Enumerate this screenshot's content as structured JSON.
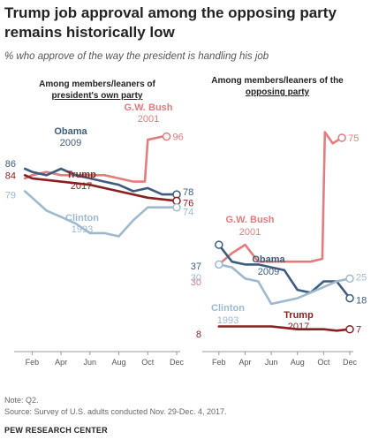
{
  "title": "Trump job approval among the opposing party remains historically low",
  "subtitle": "% who approve of the way the president is handling his job",
  "note": "Note: Q2.",
  "source": "Source: Survey of U.S. adults conducted Nov. 29-Dec. 4, 2017.",
  "brand": "PEW RESEARCH CENTER",
  "colors": {
    "bush": "#e47b7d",
    "obama": "#3e5c7d",
    "trump": "#8a1f1f",
    "clinton": "#9db9cf",
    "axis": "#9a9a9a",
    "tick_text": "#555555"
  },
  "chart_data": [
    {
      "type": "line",
      "title": "Among members/leaners of president's own party",
      "title_lines": [
        "Among members/leaners of",
        "president's own party"
      ],
      "x_ticks": [
        "Feb",
        "Apr",
        "Jun",
        "Aug",
        "Oct",
        "Dec"
      ],
      "x_domain": [
        1,
        12
      ],
      "ylim": [
        30,
        100
      ],
      "series": [
        {
          "name": "G.W. Bush",
          "year": "2001",
          "color_key": "bush",
          "start_label": "",
          "end_label": "96",
          "x": [
            1.5,
            2,
            3,
            4,
            5,
            6,
            7,
            8,
            9,
            9.8,
            10,
            11,
            11.3
          ],
          "values": [
            83,
            84,
            85,
            84,
            84,
            84,
            84,
            83,
            82,
            82,
            95,
            96,
            96
          ]
        },
        {
          "name": "Obama",
          "year": "2009",
          "color_key": "obama",
          "start_label": "86",
          "end_label": "78",
          "x": [
            1.5,
            2,
            3,
            4,
            5,
            6,
            7,
            8,
            9,
            10,
            11,
            12
          ],
          "values": [
            86,
            85,
            84,
            86,
            84,
            83,
            82,
            81,
            79,
            80,
            78,
            78
          ]
        },
        {
          "name": "Trump",
          "year": "2017",
          "color_key": "trump",
          "start_label": "84",
          "end_label": "76",
          "x": [
            1.5,
            2,
            4,
            6,
            8,
            10,
            12
          ],
          "values": [
            84,
            83,
            82,
            81,
            79,
            77,
            76
          ]
        },
        {
          "name": "Clinton",
          "year": "1993",
          "color_key": "clinton",
          "start_label": "79",
          "end_label": "74",
          "x": [
            1.5,
            2,
            3,
            4,
            5,
            6,
            7,
            8,
            9,
            10,
            11,
            12
          ],
          "values": [
            79,
            77,
            73,
            71,
            69,
            66,
            66,
            65,
            70,
            74,
            74,
            74
          ]
        }
      ]
    },
    {
      "type": "line",
      "title": "Among members/leaners of the opposing party",
      "title_lines": [
        "Among members/leaners of the",
        "opposing party"
      ],
      "x_ticks": [
        "Feb",
        "Apr",
        "Jun",
        "Aug",
        "Oct",
        "Dec"
      ],
      "x_domain": [
        1,
        12
      ],
      "ylim": [
        0,
        80
      ],
      "series": [
        {
          "name": "G.W. Bush",
          "year": "2001",
          "color_key": "bush",
          "start_label": "30",
          "end_label": "75",
          "x": [
            2,
            3,
            4,
            5,
            6,
            7,
            8,
            9,
            9.9,
            10.1,
            10.7,
            11.4
          ],
          "values": [
            30,
            34,
            37,
            31,
            31,
            31,
            31,
            31,
            32,
            77,
            73,
            75
          ]
        },
        {
          "name": "Obama",
          "year": "2009",
          "color_key": "obama",
          "start_label": "37",
          "end_label": "18",
          "x": [
            2,
            3,
            4,
            5,
            6,
            7,
            8,
            9,
            10,
            11,
            12
          ],
          "values": [
            37,
            31,
            30,
            30,
            29,
            28,
            21,
            20,
            24,
            24,
            18
          ]
        },
        {
          "name": "Clinton",
          "year": "1993",
          "color_key": "clinton",
          "start_label": "30",
          "end_label": "25",
          "x": [
            2,
            3,
            4,
            5,
            6,
            7,
            8,
            9,
            10,
            11,
            12
          ],
          "values": [
            30,
            29,
            25,
            24,
            16,
            17,
            18,
            20,
            22,
            24,
            25
          ]
        },
        {
          "name": "Trump",
          "year": "2017",
          "color_key": "trump",
          "start_label": "8",
          "end_label": "7",
          "x": [
            2,
            3,
            4,
            5,
            6,
            7,
            8,
            9,
            10,
            11,
            12
          ],
          "values": [
            8,
            8,
            8,
            8,
            8,
            7.5,
            7,
            7,
            7,
            6.5,
            7
          ]
        }
      ]
    }
  ]
}
